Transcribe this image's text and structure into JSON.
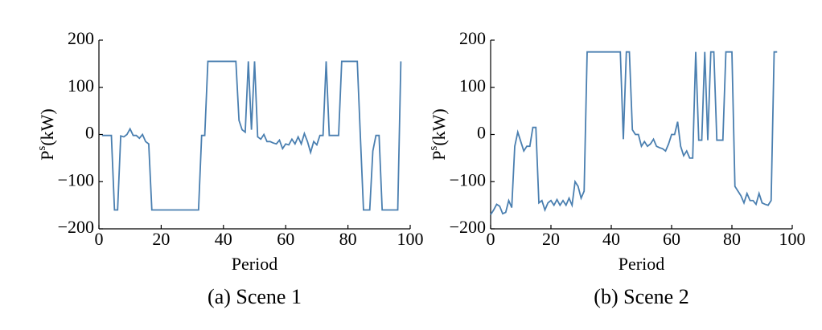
{
  "chart_data": [
    {
      "type": "line",
      "title": "(a) Scene 1",
      "xlabel": "Period",
      "ylabel": "P",
      "ylabel_sup": "s",
      "ylabel_unit": "(kW)",
      "xlim": [
        0,
        100
      ],
      "ylim": [
        -200,
        200
      ],
      "xticks": [
        0,
        20,
        40,
        60,
        80,
        100
      ],
      "yticks": [
        {
          "value": -200,
          "label": "−200"
        },
        {
          "value": -100,
          "label": "−100"
        },
        0,
        100,
        200
      ],
      "series": [
        {
          "color": "#4a7fb0",
          "x": [
            1,
            2,
            3,
            4,
            5,
            6,
            7,
            8,
            9,
            10,
            11,
            12,
            13,
            14,
            15,
            16,
            17,
            18,
            19,
            20,
            21,
            22,
            23,
            24,
            25,
            26,
            27,
            28,
            29,
            30,
            31,
            32,
            33,
            34,
            35,
            36,
            37,
            38,
            39,
            40,
            41,
            42,
            43,
            44,
            45,
            46,
            47,
            48,
            49,
            50,
            51,
            52,
            53,
            54,
            55,
            56,
            57,
            58,
            59,
            60,
            61,
            62,
            63,
            64,
            65,
            66,
            67,
            68,
            69,
            70,
            71,
            72,
            73,
            74,
            75,
            76,
            77,
            78,
            79,
            80,
            81,
            82,
            83,
            84,
            85,
            86,
            87,
            88,
            89,
            90,
            91,
            92,
            93,
            94,
            95,
            96,
            97
          ],
          "values": [
            -2,
            -2,
            -2,
            -2,
            -160,
            -160,
            -3,
            -5,
            0,
            12,
            -2,
            -2,
            -8,
            0,
            -15,
            -20,
            -160,
            -160,
            -160,
            -160,
            -160,
            -160,
            -160,
            -160,
            -160,
            -160,
            -160,
            -160,
            -160,
            -160,
            -160,
            -160,
            -2,
            -2,
            155,
            155,
            155,
            155,
            155,
            155,
            155,
            155,
            155,
            155,
            30,
            10,
            5,
            155,
            10,
            155,
            -5,
            -10,
            0,
            -15,
            -15,
            -18,
            -20,
            -12,
            -30,
            -20,
            -22,
            -10,
            -20,
            -5,
            -20,
            2,
            -15,
            -38,
            -15,
            -22,
            -2,
            -2,
            155,
            -2,
            -2,
            -2,
            -2,
            155,
            155,
            155,
            155,
            155,
            155,
            -5,
            -160,
            -160,
            -160,
            -35,
            -2,
            -2,
            -160,
            -160,
            -160,
            -160,
            -160,
            -160,
            155
          ]
        }
      ]
    },
    {
      "type": "line",
      "title": "(b) Scene 2",
      "xlabel": "Period",
      "ylabel": "P",
      "ylabel_sup": "s",
      "ylabel_unit": "(kW)",
      "xlim": [
        0,
        100
      ],
      "ylim": [
        -200,
        200
      ],
      "xticks": [
        0,
        20,
        40,
        60,
        80,
        100
      ],
      "yticks": [
        {
          "value": -200,
          "label": "−200"
        },
        {
          "value": -100,
          "label": "−100"
        },
        0,
        100,
        200
      ],
      "series": [
        {
          "color": "#4a7fb0",
          "x": [
            0,
            1,
            2,
            3,
            4,
            5,
            6,
            7,
            8,
            9,
            10,
            11,
            12,
            13,
            14,
            15,
            16,
            17,
            18,
            19,
            20,
            21,
            22,
            23,
            24,
            25,
            26,
            27,
            28,
            29,
            30,
            31,
            32,
            33,
            34,
            35,
            36,
            37,
            38,
            39,
            40,
            41,
            42,
            43,
            44,
            45,
            46,
            47,
            48,
            49,
            50,
            51,
            52,
            53,
            54,
            55,
            56,
            57,
            58,
            59,
            60,
            61,
            62,
            63,
            64,
            65,
            66,
            67,
            68,
            69,
            70,
            71,
            72,
            73,
            74,
            75,
            76,
            77,
            78,
            79,
            80,
            81,
            82,
            83,
            84,
            85,
            86,
            87,
            88,
            89,
            90,
            91,
            92,
            93,
            94,
            95
          ],
          "values": [
            -170,
            -160,
            -148,
            -152,
            -168,
            -165,
            -140,
            -155,
            -25,
            5,
            -15,
            -35,
            -25,
            -25,
            15,
            15,
            -145,
            -140,
            -160,
            -145,
            -140,
            -150,
            -138,
            -150,
            -140,
            -150,
            -135,
            -150,
            -100,
            -110,
            -135,
            -120,
            175,
            175,
            175,
            175,
            175,
            175,
            175,
            175,
            175,
            175,
            175,
            175,
            -10,
            175,
            175,
            10,
            0,
            0,
            -25,
            -15,
            -25,
            -20,
            -10,
            -25,
            -28,
            -30,
            -35,
            -20,
            0,
            0,
            27,
            -25,
            -45,
            -35,
            -50,
            -50,
            175,
            -12,
            -12,
            175,
            -12,
            175,
            175,
            -12,
            -12,
            -12,
            175,
            175,
            175,
            -110,
            -120,
            -130,
            -145,
            -125,
            -140,
            -140,
            -148,
            -125,
            -145,
            -148,
            -150,
            -140,
            175,
            175
          ]
        }
      ]
    }
  ]
}
